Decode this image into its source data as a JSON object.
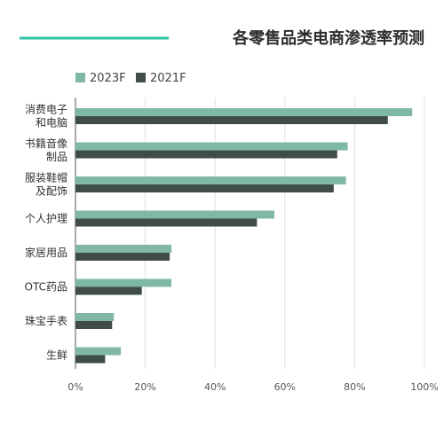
{
  "colors": {
    "accent_line": "#2fc1a6",
    "series_2023": "#7fb9a6",
    "series_2021": "#3f4c4a",
    "grid": "#d9d9d9",
    "axis": "#555555"
  },
  "chart_data": {
    "type": "bar",
    "orientation": "horizontal",
    "title": "各零售品类电商渗透率预测",
    "xlabel": "",
    "ylabel": "",
    "xlim": [
      0,
      100
    ],
    "x_ticks": [
      0,
      20,
      40,
      60,
      80,
      100
    ],
    "x_tick_labels": [
      "0%",
      "20%",
      "40%",
      "60%",
      "80%",
      "100%"
    ],
    "grid": true,
    "legend_position": "top-left",
    "categories": [
      [
        "消费电子",
        "和电脑"
      ],
      [
        "书籍音像",
        "制品"
      ],
      [
        "服装鞋帽",
        "及配饰"
      ],
      [
        "个人护理"
      ],
      [
        "家居用品"
      ],
      [
        "OTC药品"
      ],
      [
        "珠宝手表"
      ],
      [
        "生鲜"
      ]
    ],
    "series": [
      {
        "name": "2023F",
        "color": "#7fb9a6",
        "values": [
          96.5,
          78,
          77.5,
          57,
          27.5,
          27.5,
          11,
          13
        ]
      },
      {
        "name": "2021F",
        "color": "#3f4c4a",
        "values": [
          89.5,
          75,
          74,
          52,
          27,
          19,
          10.5,
          8.5
        ]
      }
    ]
  }
}
